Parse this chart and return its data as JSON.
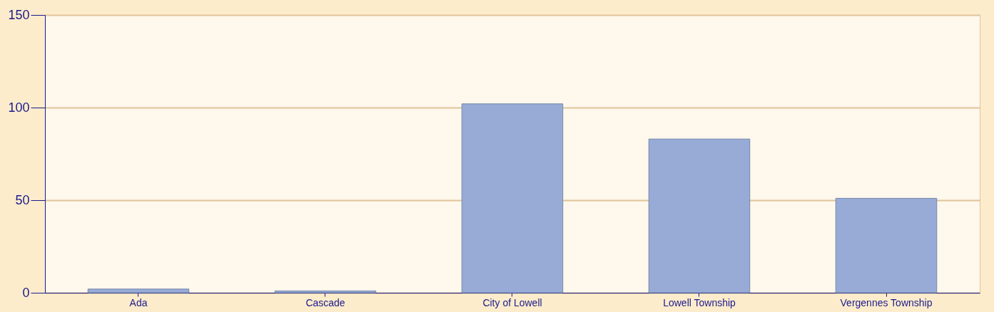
{
  "chart_data": {
    "type": "bar",
    "categories": [
      "Ada",
      "Cascade",
      "City of Lowell",
      "Lowell Township",
      "Vergennes Township"
    ],
    "values": [
      2,
      1,
      102,
      83,
      51
    ],
    "color": "#97abd6",
    "ylim": [
      0,
      150
    ],
    "yticks": [
      0,
      50,
      100,
      150
    ],
    "grid": "y"
  }
}
